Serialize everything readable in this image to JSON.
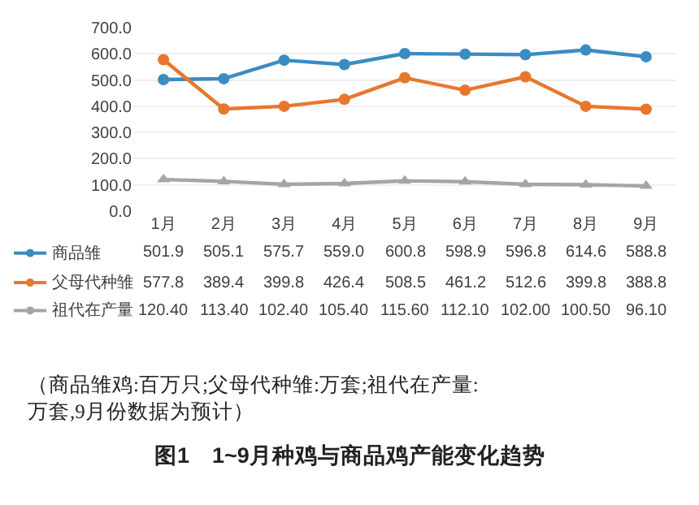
{
  "chart_data": {
    "type": "line",
    "title": "图1　1~9月种鸡与商品鸡产能变化趋势",
    "annotations": [
      "（商品雏鸡:百万只;父母代种雏:万套;祖代在产量:万套,9月份数据为预计）"
    ],
    "categories": [
      "1月",
      "2月",
      "3月",
      "4月",
      "5月",
      "6月",
      "7月",
      "8月",
      "9月"
    ],
    "series": [
      {
        "name": "商品雏",
        "color": "#3a8cc1",
        "marker": "circle",
        "values": [
          501.9,
          505.1,
          575.7,
          559.0,
          600.8,
          598.9,
          596.8,
          614.6,
          588.8
        ],
        "value_labels": [
          "501.9",
          "505.1",
          "575.7",
          "559.0",
          "600.8",
          "598.9",
          "596.8",
          "614.6",
          "588.8"
        ]
      },
      {
        "name": "父母代种雏",
        "color": "#e8772e",
        "marker": "circle",
        "values": [
          577.8,
          389.4,
          399.8,
          426.4,
          508.5,
          461.2,
          512.6,
          399.8,
          388.8
        ],
        "value_labels": [
          "577.8",
          "389.4",
          "399.8",
          "426.4",
          "508.5",
          "461.2",
          "512.6",
          "399.8",
          "388.8"
        ]
      },
      {
        "name": "祖代在产量",
        "color": "#a5a5a5",
        "marker": "triangle",
        "values": [
          120.4,
          113.4,
          102.4,
          105.4,
          115.6,
          112.1,
          102.0,
          100.5,
          96.1
        ],
        "value_labels": [
          "120.40",
          "113.40",
          "102.40",
          "105.40",
          "115.60",
          "112.10",
          "102.00",
          "100.50",
          "96.10"
        ]
      }
    ],
    "ylim": [
      0,
      700
    ],
    "yticks": [
      {
        "value": 0,
        "label": "0.0"
      },
      {
        "value": 100,
        "label": "100.0"
      },
      {
        "value": 200,
        "label": "200.0"
      },
      {
        "value": 300,
        "label": "300.0"
      },
      {
        "value": 400,
        "label": "400.0"
      },
      {
        "value": 500,
        "label": "500.0"
      },
      {
        "value": 600,
        "label": "600.0"
      },
      {
        "value": 700,
        "label": "700.0"
      }
    ],
    "grid": "y",
    "legend": "bottom left",
    "line_style": "solid"
  }
}
